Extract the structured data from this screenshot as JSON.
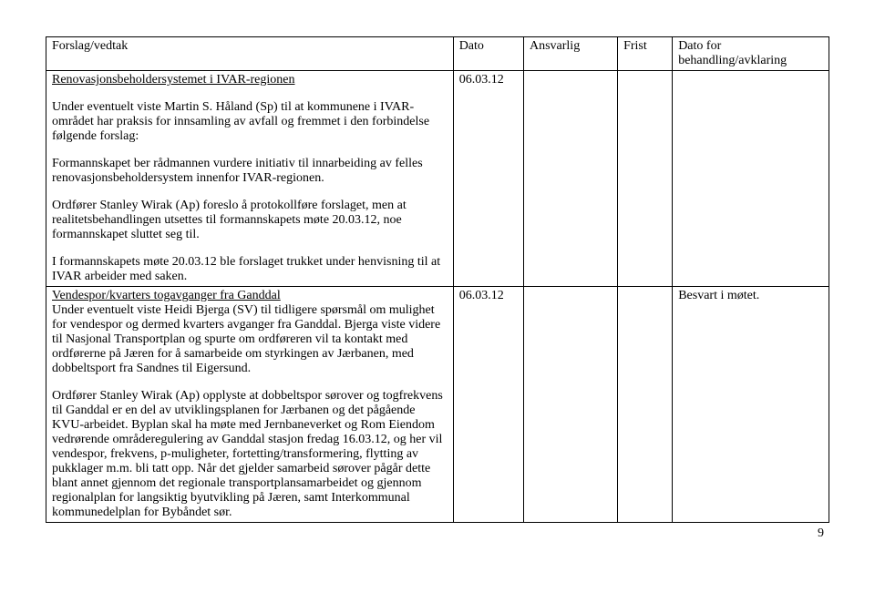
{
  "headers": {
    "forslag": "Forslag/vedtak",
    "dato": "Dato",
    "ansvarlig": "Ansvarlig",
    "frist": "Frist",
    "behandling": "Dato for behandling/avklaring"
  },
  "row1": {
    "title": "Renovasjonsbeholdersystemet i IVAR-regionen",
    "p1": "Under eventuelt viste Martin S. Håland (Sp) til at kommunene i IVAR-området har praksis for innsamling av avfall og fremmet i den forbindelse følgende forslag:",
    "p2": "Formannskapet ber rådmannen vurdere initiativ til innarbeiding av felles renovasjonsbeholdersystem innenfor IVAR-regionen.",
    "p3": "Ordfører Stanley Wirak (Ap) foreslo å protokollføre forslaget, men at realitetsbehandlingen utsettes til formannskapets møte 20.03.12, noe formannskapet sluttet seg til.",
    "p4": "I formannskapets møte 20.03.12 ble forslaget trukket under henvisning til at IVAR arbeider med saken.",
    "dato": "06.03.12"
  },
  "row2": {
    "title": "Vendespor/kvarters togavganger fra Ganddal",
    "p1": "Under eventuelt viste Heidi Bjerga (SV) til tidligere spørsmål om mulighet for vendespor og dermed kvarters avganger fra Ganddal. Bjerga viste videre til Nasjonal Transportplan og spurte om ordføreren vil ta kontakt med ordførerne på Jæren for å samarbeide om styrkingen av Jærbanen, med dobbeltsport fra Sandnes til Eigersund.",
    "p2": "Ordfører Stanley Wirak (Ap) opplyste at dobbeltspor sørover og togfrekvens til Ganddal er en del av utviklingsplanen for Jærbanen og det pågående KVU-arbeidet. Byplan skal ha møte med Jernbaneverket og Rom Eiendom vedrørende områderegulering av Ganddal stasjon fredag 16.03.12, og her vil vendespor, frekvens, p-muligheter, fortetting/transformering, flytting av pukklager m.m. bli tatt opp. Når det gjelder samarbeid sørover pågår dette blant annet gjennom det regionale transportplansamarbeidet og gjennom regionalplan for langsiktig byutvikling på Jæren, samt Interkommunal kommunedelplan for Bybåndet sør.",
    "dato": "06.03.12",
    "behandling": "Besvart i møtet."
  },
  "pagenum": "9"
}
